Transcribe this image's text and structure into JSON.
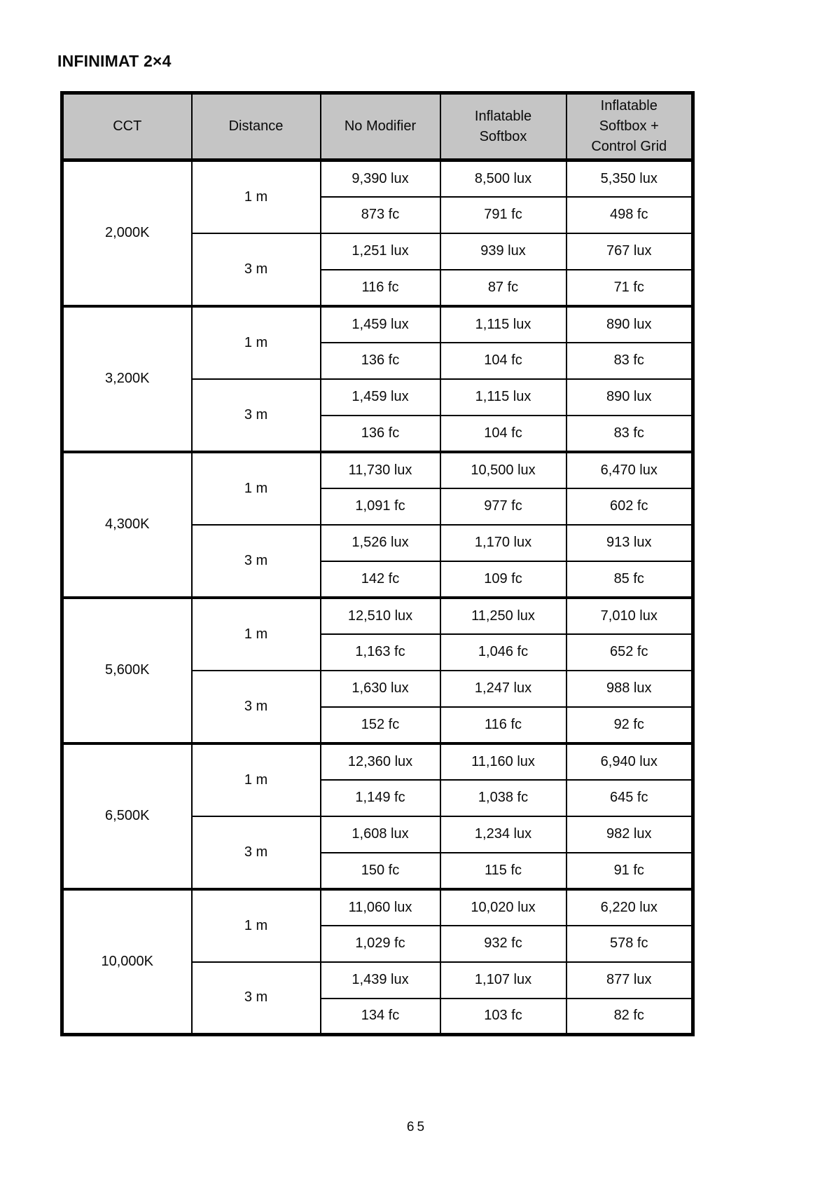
{
  "page": {
    "title": "INFINIMAT 2×4",
    "page_number": "65"
  },
  "colors": {
    "header_background": "#c5c5c5",
    "border": "#000000",
    "text": "#0a0a0a"
  },
  "table": {
    "headers": [
      "CCT",
      "Distance",
      "No Modifier",
      "Inflatable Softbox",
      "Inflatable Softbox + Control Grid"
    ],
    "groups": [
      {
        "cct": "2,000K",
        "distances": [
          {
            "label": "1 m",
            "lux": [
              "9,390 lux",
              "8,500 lux",
              "5,350 lux"
            ],
            "fc": [
              "873 fc",
              "791 fc",
              "498 fc"
            ]
          },
          {
            "label": "3 m",
            "lux": [
              "1,251 lux",
              "939 lux",
              "767 lux"
            ],
            "fc": [
              "116 fc",
              "87 fc",
              "71 fc"
            ]
          }
        ]
      },
      {
        "cct": "3,200K",
        "distances": [
          {
            "label": "1 m",
            "lux": [
              "1,459 lux",
              "1,115 lux",
              "890 lux"
            ],
            "fc": [
              "136 fc",
              "104 fc",
              "83 fc"
            ]
          },
          {
            "label": "3 m",
            "lux": [
              "1,459 lux",
              "1,115 lux",
              "890 lux"
            ],
            "fc": [
              "136 fc",
              "104 fc",
              "83 fc"
            ]
          }
        ]
      },
      {
        "cct": "4,300K",
        "distances": [
          {
            "label": "1 m",
            "lux": [
              "11,730 lux",
              "10,500 lux",
              "6,470 lux"
            ],
            "fc": [
              "1,091 fc",
              "977 fc",
              "602 fc"
            ]
          },
          {
            "label": "3 m",
            "lux": [
              "1,526 lux",
              "1,170 lux",
              "913 lux"
            ],
            "fc": [
              "142 fc",
              "109 fc",
              "85 fc"
            ]
          }
        ]
      },
      {
        "cct": "5,600K",
        "distances": [
          {
            "label": "1 m",
            "lux": [
              "12,510 lux",
              "11,250 lux",
              "7,010 lux"
            ],
            "fc": [
              "1,163 fc",
              "1,046 fc",
              "652 fc"
            ]
          },
          {
            "label": "3 m",
            "lux": [
              "1,630 lux",
              "1,247 lux",
              "988 lux"
            ],
            "fc": [
              "152 fc",
              "116 fc",
              "92 fc"
            ]
          }
        ]
      },
      {
        "cct": "6,500K",
        "distances": [
          {
            "label": "1 m",
            "lux": [
              "12,360 lux",
              "11,160 lux",
              "6,940 lux"
            ],
            "fc": [
              "1,149 fc",
              "1,038 fc",
              "645 fc"
            ]
          },
          {
            "label": "3 m",
            "lux": [
              "1,608 lux",
              "1,234 lux",
              "982 lux"
            ],
            "fc": [
              "150 fc",
              "115 fc",
              "91 fc"
            ]
          }
        ]
      },
      {
        "cct": "10,000K",
        "distances": [
          {
            "label": "1 m",
            "lux": [
              "11,060 lux",
              "10,020 lux",
              "6,220 lux"
            ],
            "fc": [
              "1,029 fc",
              "932 fc",
              "578 fc"
            ]
          },
          {
            "label": "3 m",
            "lux": [
              "1,439 lux",
              "1,107 lux",
              "877 lux"
            ],
            "fc": [
              "134 fc",
              "103 fc",
              "82 fc"
            ]
          }
        ]
      }
    ]
  }
}
